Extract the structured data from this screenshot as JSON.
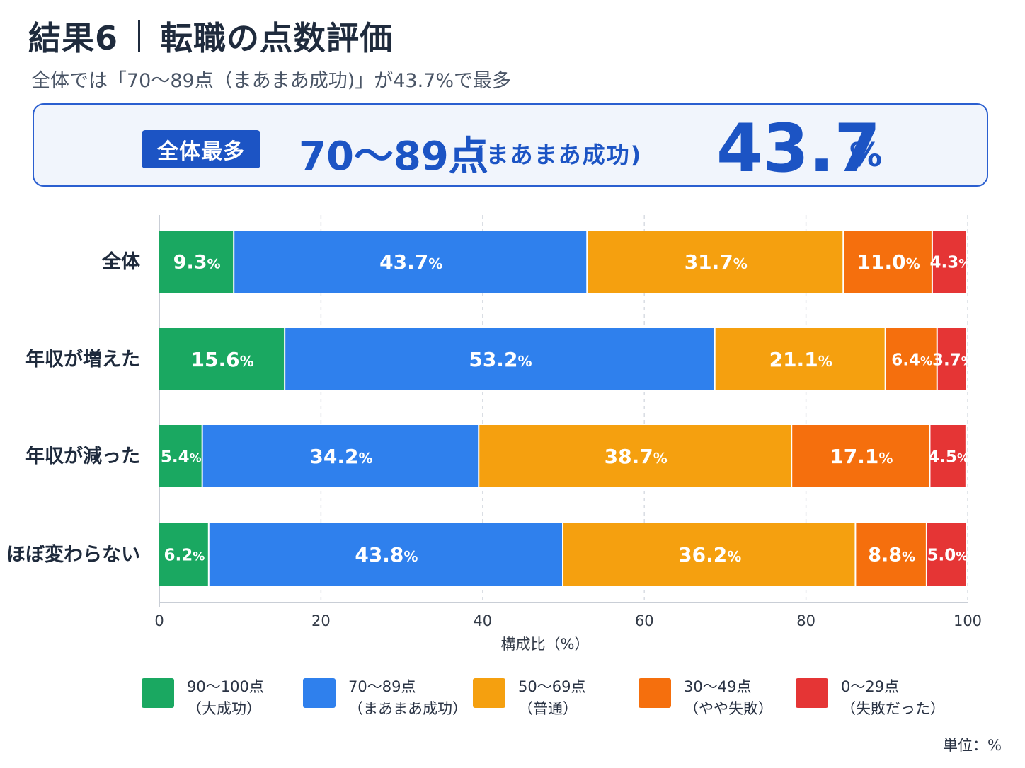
{
  "header": {
    "title_left": "結果6",
    "title_right": "転職の点数評価",
    "subtitle": "全体では「70～89点（まあまあ成功)」が43.7%で最多"
  },
  "highlight": {
    "badge": "全体最多",
    "category": "70～89点",
    "category_sub": "(まあまあ成功)",
    "value": "43.7",
    "unit": "%"
  },
  "chart_data": {
    "type": "bar",
    "orientation": "horizontal",
    "stacked": true,
    "categories": [
      "全体",
      "年収が増えた",
      "年収が減った",
      "ほぼ変わらない"
    ],
    "series": [
      {
        "name": "90～100点（大成功）",
        "label_line1": "90～100点",
        "label_line2": "（大成功）",
        "color": "#1aa861",
        "values": [
          9.3,
          15.6,
          5.4,
          6.2
        ]
      },
      {
        "name": "70～89点（まあまあ成功）",
        "label_line1": "70～89点",
        "label_line2": "（まあまあ成功）",
        "color": "#2f80ed",
        "values": [
          43.7,
          53.2,
          34.2,
          43.8
        ]
      },
      {
        "name": "50～69点（普通）",
        "label_line1": "50～69点",
        "label_line2": "（普通）",
        "color": "#f5a00f",
        "values": [
          31.7,
          21.1,
          38.7,
          36.2
        ]
      },
      {
        "name": "30～49点（やや失敗）",
        "label_line1": "30～49点",
        "label_line2": "（やや失敗）",
        "color": "#f56f0d",
        "values": [
          11.0,
          6.4,
          17.1,
          8.8
        ]
      },
      {
        "name": "0～29点（失敗だった）",
        "label_line1": "0～29点",
        "label_line2": "（失敗だった）",
        "color": "#e53535",
        "values": [
          4.3,
          3.7,
          4.5,
          5.0
        ]
      }
    ],
    "xlabel": "構成比（%）",
    "xlim": [
      0,
      100
    ],
    "xticks": [
      0,
      20,
      40,
      60,
      80,
      100
    ],
    "value_suffix": "%",
    "grid": true,
    "legend_position": "bottom",
    "unit_note": "単位：%"
  }
}
